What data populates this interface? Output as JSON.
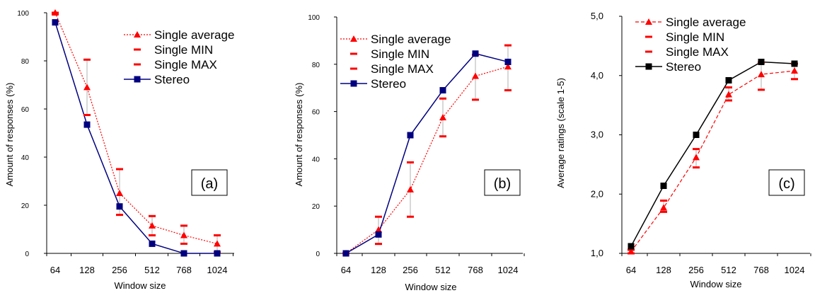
{
  "colors": {
    "single": "#ff0000",
    "stereo_a": "#000080",
    "stereo_b": "#000080",
    "stereo_c": "#000000",
    "errbar": "#b0b0b0"
  },
  "chart_data": [
    {
      "type": "line",
      "panel_label": "(a)",
      "xlabel": "Window size",
      "ylabel": "Amount of responses (%)",
      "categories": [
        "64",
        "128",
        "256",
        "512",
        "768",
        "1024"
      ],
      "yticks": [
        "0",
        "20",
        "40",
        "60",
        "80",
        "100"
      ],
      "ylim": [
        0,
        100
      ],
      "grid": false,
      "legend_position": "top-right",
      "series": [
        {
          "name": "Single average",
          "values": [
            100,
            69,
            25,
            11.5,
            7.5,
            4
          ]
        },
        {
          "name": "Single MIN",
          "values": [
            99.5,
            57.5,
            16,
            7.5,
            4,
            0.5
          ]
        },
        {
          "name": "Single MAX",
          "values": [
            100,
            80.5,
            35,
            15.5,
            11.5,
            7.5
          ]
        },
        {
          "name": "Stereo",
          "values": [
            96,
            53.5,
            19.5,
            4,
            0,
            0
          ]
        }
      ]
    },
    {
      "type": "line",
      "panel_label": "(b)",
      "xlabel": "Window size",
      "ylabel": "Amount of responses (%)",
      "categories": [
        "64",
        "128",
        "256",
        "512",
        "768",
        "1024"
      ],
      "yticks": [
        "0",
        "20",
        "40",
        "60",
        "80",
        "100"
      ],
      "ylim": [
        0,
        100
      ],
      "grid": false,
      "legend_position": "top-left",
      "series": [
        {
          "name": "Single average",
          "values": [
            0,
            10,
            27,
            57.5,
            75,
            79
          ]
        },
        {
          "name": "Single MIN",
          "values": [
            0,
            4,
            15.5,
            49.5,
            65,
            69
          ]
        },
        {
          "name": "Single MAX",
          "values": [
            0,
            15.5,
            38.5,
            65.5,
            84,
            88
          ]
        },
        {
          "name": "Stereo",
          "values": [
            0,
            8,
            50,
            69,
            84.5,
            81
          ]
        }
      ]
    },
    {
      "type": "line",
      "panel_label": "(c)",
      "xlabel": "Window size",
      "ylabel": "Average ratings (scale 1-5)",
      "categories": [
        "64",
        "128",
        "256",
        "512",
        "768",
        "1024"
      ],
      "yticks": [
        "1,0",
        "2,0",
        "3,0",
        "4,0",
        "5,0"
      ],
      "ylim": [
        1,
        5
      ],
      "grid": false,
      "legend_position": "top-left",
      "series": [
        {
          "name": "Single average",
          "values": [
            1.03,
            1.77,
            2.62,
            3.68,
            4.02,
            4.08
          ]
        },
        {
          "name": "Single MIN",
          "values": [
            1.0,
            1.7,
            2.45,
            3.58,
            3.76,
            3.94
          ]
        },
        {
          "name": "Single MAX",
          "values": [
            1.06,
            1.89,
            2.76,
            3.8,
            4.22,
            4.2
          ]
        },
        {
          "name": "Stereo",
          "values": [
            1.12,
            2.14,
            3.0,
            3.92,
            4.23,
            4.2
          ]
        }
      ]
    }
  ]
}
